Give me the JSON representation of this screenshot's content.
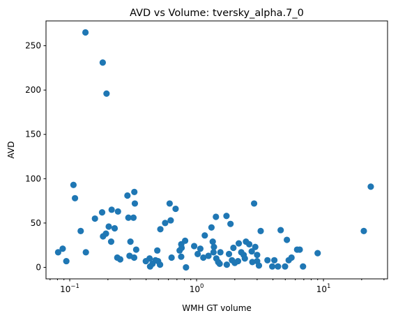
{
  "chart_data": {
    "type": "scatter",
    "title": "AVD vs Volume: tversky_alpha.7_0",
    "xlabel": "WMH GT volume",
    "ylabel": "AVD",
    "xscale": "log",
    "xlim": [
      0.065,
      32
    ],
    "ylim": [
      -13,
      278
    ],
    "x_ticks": [
      {
        "value": 0.1,
        "base": "10",
        "exp": "−1"
      },
      {
        "value": 1,
        "base": "10",
        "exp": "0"
      },
      {
        "value": 10,
        "base": "10",
        "exp": "1"
      }
    ],
    "y_ticks": [
      0,
      50,
      100,
      150,
      200,
      250
    ],
    "grid": false,
    "marker_color": "#1f77b4",
    "points": [
      {
        "x": 0.133,
        "y": 265
      },
      {
        "x": 0.182,
        "y": 231
      },
      {
        "x": 0.195,
        "y": 196
      },
      {
        "x": 0.107,
        "y": 93
      },
      {
        "x": 0.11,
        "y": 78
      },
      {
        "x": 0.122,
        "y": 41
      },
      {
        "x": 0.134,
        "y": 17
      },
      {
        "x": 0.081,
        "y": 17
      },
      {
        "x": 0.088,
        "y": 21
      },
      {
        "x": 0.094,
        "y": 7
      },
      {
        "x": 0.158,
        "y": 55
      },
      {
        "x": 0.18,
        "y": 62
      },
      {
        "x": 0.183,
        "y": 35
      },
      {
        "x": 0.193,
        "y": 38
      },
      {
        "x": 0.203,
        "y": 46
      },
      {
        "x": 0.212,
        "y": 29
      },
      {
        "x": 0.214,
        "y": 65
      },
      {
        "x": 0.226,
        "y": 44
      },
      {
        "x": 0.24,
        "y": 63
      },
      {
        "x": 0.237,
        "y": 11
      },
      {
        "x": 0.25,
        "y": 9
      },
      {
        "x": 0.285,
        "y": 81
      },
      {
        "x": 0.29,
        "y": 56
      },
      {
        "x": 0.301,
        "y": 29
      },
      {
        "x": 0.296,
        "y": 13
      },
      {
        "x": 0.323,
        "y": 85
      },
      {
        "x": 0.326,
        "y": 72
      },
      {
        "x": 0.318,
        "y": 56
      },
      {
        "x": 0.334,
        "y": 20
      },
      {
        "x": 0.322,
        "y": 11
      },
      {
        "x": 0.398,
        "y": 7
      },
      {
        "x": 0.426,
        "y": 10
      },
      {
        "x": 0.43,
        "y": 1
      },
      {
        "x": 0.449,
        "y": 4
      },
      {
        "x": 0.474,
        "y": 8
      },
      {
        "x": 0.49,
        "y": 19
      },
      {
        "x": 0.497,
        "y": 7
      },
      {
        "x": 0.515,
        "y": 3
      },
      {
        "x": 0.518,
        "y": 43
      },
      {
        "x": 0.565,
        "y": 50
      },
      {
        "x": 0.613,
        "y": 72
      },
      {
        "x": 0.625,
        "y": 53
      },
      {
        "x": 0.635,
        "y": 11
      },
      {
        "x": 0.683,
        "y": 66
      },
      {
        "x": 0.735,
        "y": 19
      },
      {
        "x": 0.757,
        "y": 26
      },
      {
        "x": 0.762,
        "y": 22
      },
      {
        "x": 0.756,
        "y": 12
      },
      {
        "x": 0.812,
        "y": 30
      },
      {
        "x": 0.825,
        "y": 0
      },
      {
        "x": 0.957,
        "y": 24
      },
      {
        "x": 1.02,
        "y": 15
      },
      {
        "x": 1.07,
        "y": 21
      },
      {
        "x": 1.13,
        "y": 11
      },
      {
        "x": 1.16,
        "y": 36
      },
      {
        "x": 1.24,
        "y": 13
      },
      {
        "x": 1.31,
        "y": 45
      },
      {
        "x": 1.34,
        "y": 29
      },
      {
        "x": 1.37,
        "y": 23
      },
      {
        "x": 1.36,
        "y": 17
      },
      {
        "x": 1.42,
        "y": 57
      },
      {
        "x": 1.43,
        "y": 10
      },
      {
        "x": 1.48,
        "y": 6
      },
      {
        "x": 1.52,
        "y": 4
      },
      {
        "x": 1.54,
        "y": 17
      },
      {
        "x": 1.72,
        "y": 58
      },
      {
        "x": 1.73,
        "y": 3
      },
      {
        "x": 1.8,
        "y": 15
      },
      {
        "x": 1.85,
        "y": 49
      },
      {
        "x": 1.9,
        "y": 8
      },
      {
        "x": 1.95,
        "y": 22
      },
      {
        "x": 2.0,
        "y": 5
      },
      {
        "x": 2.12,
        "y": 7
      },
      {
        "x": 2.15,
        "y": 27
      },
      {
        "x": 2.25,
        "y": 17
      },
      {
        "x": 2.35,
        "y": 14
      },
      {
        "x": 2.45,
        "y": 29
      },
      {
        "x": 2.4,
        "y": 10
      },
      {
        "x": 2.6,
        "y": 26
      },
      {
        "x": 2.72,
        "y": 18
      },
      {
        "x": 2.75,
        "y": 6
      },
      {
        "x": 2.84,
        "y": 72
      },
      {
        "x": 2.9,
        "y": 23
      },
      {
        "x": 3.0,
        "y": 14
      },
      {
        "x": 3.0,
        "y": 7
      },
      {
        "x": 3.1,
        "y": 2
      },
      {
        "x": 3.2,
        "y": 41
      },
      {
        "x": 3.62,
        "y": 8
      },
      {
        "x": 3.95,
        "y": 1
      },
      {
        "x": 4.1,
        "y": 8
      },
      {
        "x": 4.38,
        "y": 1
      },
      {
        "x": 4.6,
        "y": 42
      },
      {
        "x": 4.98,
        "y": 1
      },
      {
        "x": 5.15,
        "y": 31
      },
      {
        "x": 5.32,
        "y": 8
      },
      {
        "x": 5.6,
        "y": 11
      },
      {
        "x": 6.2,
        "y": 20
      },
      {
        "x": 6.5,
        "y": 20
      },
      {
        "x": 6.9,
        "y": 1
      },
      {
        "x": 9.0,
        "y": 16
      },
      {
        "x": 20.8,
        "y": 41
      },
      {
        "x": 23.6,
        "y": 91
      }
    ]
  }
}
